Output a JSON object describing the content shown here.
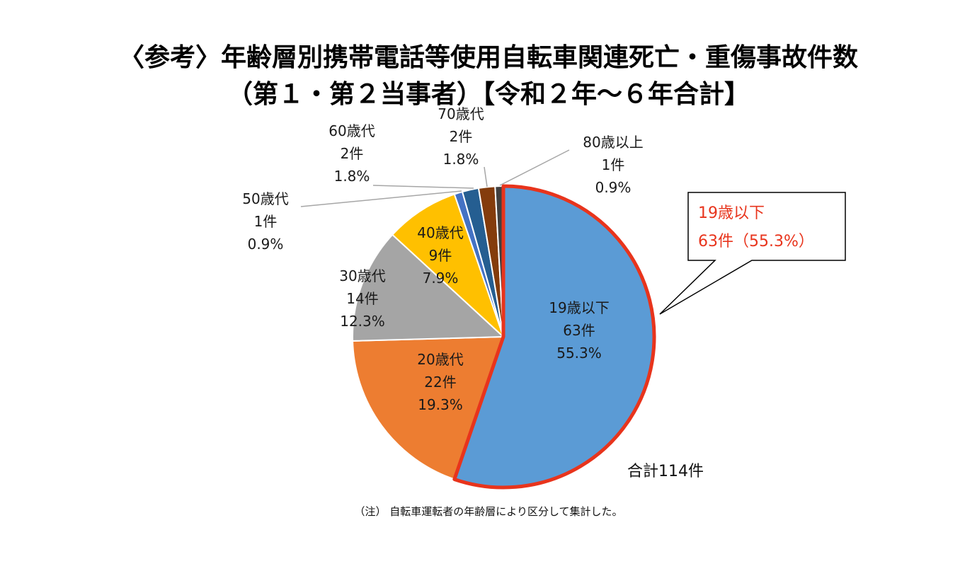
{
  "header": {
    "title_line1": "〈参考〉年齢層別携帯電話等使用自転車関連死亡・重傷事故件数",
    "title_line2": "（第１・第２当事者）【令和２年～６年合計】"
  },
  "total_label": "合計114件",
  "note": "（注） 自転車運転者の年齢層により区分して集計した。",
  "chart_data": {
    "type": "pie",
    "slices": [
      {
        "label": "19歳以下",
        "count": "63件",
        "percent": "55.3%",
        "value": 63,
        "color": "#5B9BD5",
        "highlight": true
      },
      {
        "label": "20歳代",
        "count": "22件",
        "percent": "19.3%",
        "value": 22,
        "color": "#ED7D31"
      },
      {
        "label": "30歳代",
        "count": "14件",
        "percent": "12.3%",
        "value": 14,
        "color": "#A5A5A5"
      },
      {
        "label": "40歳代",
        "count": "9件",
        "percent": "7.9%",
        "value": 9,
        "color": "#FFC000"
      },
      {
        "label": "50歳代",
        "count": "1件",
        "percent": "0.9%",
        "value": 1,
        "color": "#4472C4"
      },
      {
        "label": "60歳代",
        "count": "2件",
        "percent": "1.8%",
        "value": 2,
        "color": "#255E91"
      },
      {
        "label": "70歳代",
        "count": "2件",
        "percent": "1.8%",
        "value": 2,
        "color": "#843C0C"
      },
      {
        "label": "80歳以上",
        "count": "1件",
        "percent": "0.9%",
        "value": 1,
        "color": "#404040"
      }
    ],
    "highlight_color": "#E8341C",
    "callout": {
      "line1": "19歳以下",
      "line2": "63件（55.3%）"
    }
  }
}
